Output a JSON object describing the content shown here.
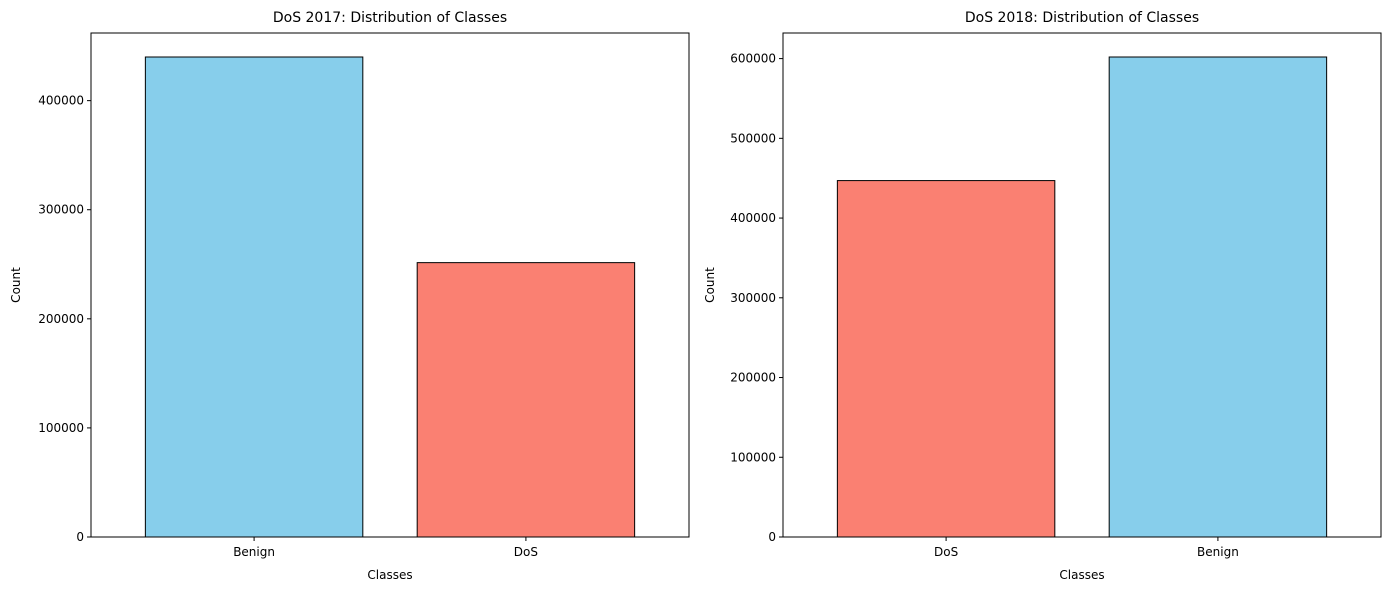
{
  "colors": {
    "benign": "#87ceeb",
    "dos": "#fa8072",
    "edge": "#000000",
    "background": "#ffffff"
  },
  "chart_data": [
    {
      "type": "bar",
      "title": "DoS 2017: Distribution of Classes",
      "xlabel": "Classes",
      "ylabel": "Count",
      "categories": [
        "Benign",
        "DoS"
      ],
      "values": [
        440000,
        251500
      ],
      "bar_colors": [
        "#87ceeb",
        "#fa8072"
      ],
      "ylim": [
        0,
        462000
      ],
      "yticks": [
        0,
        100000,
        200000,
        300000,
        400000
      ],
      "ytick_labels": [
        "0",
        "100000",
        "200000",
        "300000",
        "400000"
      ],
      "grid": false,
      "legend": "none"
    },
    {
      "type": "bar",
      "title": "DoS 2018: Distribution of Classes",
      "xlabel": "Classes",
      "ylabel": "Count",
      "categories": [
        "DoS",
        "Benign"
      ],
      "values": [
        447000,
        602000
      ],
      "bar_colors": [
        "#fa8072",
        "#87ceeb"
      ],
      "ylim": [
        0,
        632100
      ],
      "yticks": [
        0,
        100000,
        200000,
        300000,
        400000,
        500000,
        600000
      ],
      "ytick_labels": [
        "0",
        "100000",
        "200000",
        "300000",
        "400000",
        "500000",
        "600000"
      ],
      "grid": false,
      "legend": "none"
    }
  ]
}
